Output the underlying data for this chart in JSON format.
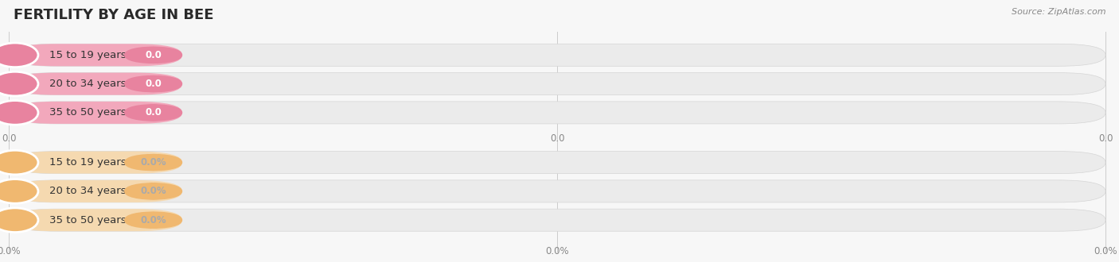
{
  "title": "FERTILITY BY AGE IN BEE",
  "source": "Source: ZipAtlas.com",
  "top_group": {
    "categories": [
      "15 to 19 years",
      "20 to 34 years",
      "35 to 50 years"
    ],
    "values": [
      0.0,
      0.0,
      0.0
    ],
    "bar_color": "#f2a8bc",
    "circle_color": "#e8839f",
    "value_pill_color": "#e8839f",
    "label_format": "0.0",
    "tick_labels": [
      "0.0",
      "0.0",
      "0.0"
    ]
  },
  "bottom_group": {
    "categories": [
      "15 to 19 years",
      "20 to 34 years",
      "35 to 50 years"
    ],
    "values": [
      0.0,
      0.0,
      0.0
    ],
    "bar_color": "#f5d9b0",
    "circle_color": "#f0b870",
    "value_pill_color": "#f0b870",
    "label_format": "0.0%",
    "tick_labels": [
      "0.0%",
      "0.0%",
      "0.0%"
    ]
  },
  "bg_color": "#f7f7f7",
  "bar_bg_color": "#ebebeb",
  "title_fontsize": 13,
  "label_fontsize": 9.5,
  "value_fontsize": 8.5,
  "tick_fontsize": 8.5,
  "fig_width": 14.06,
  "fig_height": 3.3,
  "dpi": 100
}
